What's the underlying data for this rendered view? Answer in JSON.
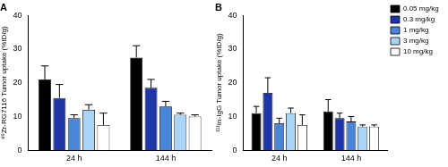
{
  "chart_data": [
    {
      "type": "bar",
      "title": "A",
      "categories": [
        "24 h",
        "144 h"
      ],
      "y_label": "⁸⁹Zr-RG7116 Tumor uptake (%ID/g)",
      "ylim": [
        0,
        40
      ],
      "yticks": [
        0,
        10,
        20,
        30,
        40
      ],
      "grid": false,
      "series": [
        {
          "name": "0.05 mg/kg",
          "color": "#000000",
          "values": [
            21,
            27.5
          ],
          "errors": [
            4,
            3.5
          ]
        },
        {
          "name": "0.3 mg/kg",
          "color": "#1f35a8",
          "values": [
            15.5,
            18.5
          ],
          "errors": [
            4,
            2.5
          ]
        },
        {
          "name": "1 mg/kg",
          "color": "#4a86d8",
          "values": [
            9.5,
            13
          ],
          "errors": [
            1,
            1.5
          ]
        },
        {
          "name": "3 mg/kg",
          "color": "#a9d4f5",
          "values": [
            12,
            10.5
          ],
          "errors": [
            1.5,
            0.5
          ]
        },
        {
          "name": "10 mg/kg",
          "color": "#ffffff",
          "values": [
            7.5,
            10
          ],
          "errors": [
            3.5,
            0.5
          ]
        }
      ]
    },
    {
      "type": "bar",
      "title": "B",
      "categories": [
        "24 h",
        "144 h"
      ],
      "y_label": "¹¹¹In-IgG Tumor uptake (%ID/g)",
      "ylim": [
        0,
        40
      ],
      "yticks": [
        0,
        10,
        20,
        30,
        40
      ],
      "grid": false,
      "legend": "right",
      "series": [
        {
          "name": "0.05 mg/kg",
          "color": "#000000",
          "values": [
            11,
            11.5
          ],
          "errors": [
            2,
            3.5
          ]
        },
        {
          "name": "0.3 mg/kg",
          "color": "#1f35a8",
          "values": [
            17,
            9.5
          ],
          "errors": [
            4.5,
            1.5
          ]
        },
        {
          "name": "1 mg/kg",
          "color": "#4a86d8",
          "values": [
            8,
            8.5
          ],
          "errors": [
            1.5,
            1.5
          ]
        },
        {
          "name": "3 mg/kg",
          "color": "#a9d4f5",
          "values": [
            11,
            7
          ],
          "errors": [
            1.5,
            0.5
          ]
        },
        {
          "name": "10 mg/kg",
          "color": "#ffffff",
          "values": [
            7.5,
            7
          ],
          "errors": [
            3,
            0.5
          ]
        }
      ]
    }
  ]
}
